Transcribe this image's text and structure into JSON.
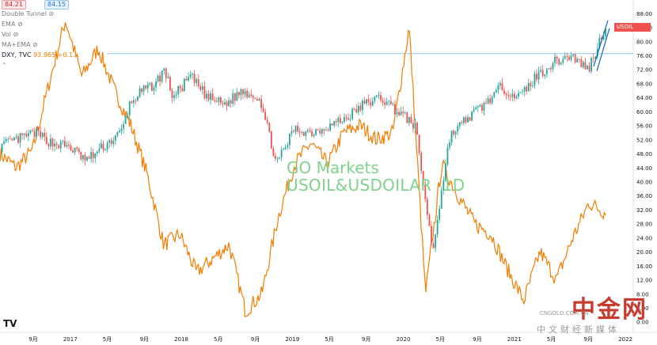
{
  "legend": {
    "price_red": "84.21",
    "price_blue": "84.15",
    "indicators": [
      "Double Tunnel",
      "EMA",
      "Vol",
      "MA+EMA"
    ],
    "dxy_label": "DXY, TVC",
    "dxy_value": "93.965",
    "dxy_change": "+0.1…"
  },
  "watermark": {
    "line1": "GO Markets",
    "line2": "USOIL&USDOILAR  1D"
  },
  "brand": {
    "name": "中金网",
    "domain": "CNGOLD.COM.CN",
    "tagline": "中文财经新媒体"
  },
  "colors": {
    "usoil_up": "#26a69a",
    "usoil_down": "#ef5350",
    "dxy": "#f57c00",
    "trendline": "#1565c0",
    "hline": "#90caf9"
  },
  "chart_data": {
    "type": "line",
    "x_ticks": [
      "9月",
      "2017",
      "5月",
      "9月",
      "2018",
      "5月",
      "9月",
      "2019",
      "5月",
      "9月",
      "2020",
      "5月",
      "9月",
      "2021",
      "5月",
      "9月",
      "2022"
    ],
    "y_ticks": [
      88,
      84,
      80,
      76,
      72,
      68,
      64,
      60,
      56,
      52,
      48,
      44,
      40,
      36,
      32,
      28,
      24,
      20,
      16,
      12,
      8,
      4,
      0
    ],
    "ylim": [
      -3,
      90
    ],
    "series": [
      {
        "name": "USOIL",
        "style": "candles",
        "points": [
          [
            0,
            50
          ],
          [
            1,
            52
          ],
          [
            1.5,
            53
          ],
          [
            2,
            54
          ],
          [
            3,
            51
          ],
          [
            4,
            50
          ],
          [
            5,
            46
          ],
          [
            6,
            50
          ],
          [
            7,
            54
          ],
          [
            7.5,
            62
          ],
          [
            8,
            65
          ],
          [
            9,
            68
          ],
          [
            9.5,
            72
          ],
          [
            10,
            64
          ],
          [
            11,
            70
          ],
          [
            12,
            64
          ],
          [
            13,
            62
          ],
          [
            14,
            66
          ],
          [
            15,
            64
          ],
          [
            16,
            45
          ],
          [
            17,
            55
          ],
          [
            18,
            54
          ],
          [
            19,
            56
          ],
          [
            20,
            58
          ],
          [
            21,
            62
          ],
          [
            22,
            64
          ],
          [
            23,
            60
          ],
          [
            24,
            56
          ],
          [
            25,
            20
          ],
          [
            26,
            53
          ],
          [
            27,
            58
          ],
          [
            28,
            62
          ],
          [
            29,
            67
          ],
          [
            30,
            64
          ],
          [
            31,
            70
          ],
          [
            32,
            74
          ],
          [
            33,
            76
          ],
          [
            34,
            72
          ],
          [
            35,
            84.2
          ]
        ],
        "last_value": 84.21
      },
      {
        "name": "DXY",
        "style": "line",
        "points": [
          [
            0,
            48
          ],
          [
            1,
            44
          ],
          [
            2,
            49
          ],
          [
            3,
            68
          ],
          [
            4,
            86
          ],
          [
            5,
            70
          ],
          [
            6,
            78
          ],
          [
            7,
            66
          ],
          [
            8,
            56
          ],
          [
            9,
            42
          ],
          [
            10,
            22
          ],
          [
            11,
            25
          ],
          [
            12,
            14
          ],
          [
            13,
            18
          ],
          [
            14,
            22
          ],
          [
            15,
            3
          ],
          [
            16,
            8
          ],
          [
            17,
            30
          ],
          [
            18,
            45
          ],
          [
            19,
            51
          ],
          [
            20,
            45
          ],
          [
            21,
            54
          ],
          [
            22,
            56
          ],
          [
            23,
            52
          ],
          [
            24,
            54
          ],
          [
            25,
            84
          ],
          [
            26,
            8
          ],
          [
            27,
            45
          ],
          [
            28,
            36
          ],
          [
            29,
            28
          ],
          [
            30,
            25
          ],
          [
            31,
            15
          ],
          [
            32,
            6
          ],
          [
            33,
            20
          ],
          [
            34,
            12
          ],
          [
            35,
            24
          ],
          [
            36,
            34
          ],
          [
            37,
            31
          ]
        ],
        "last_value": 93.965
      }
    ],
    "trendline_end": 84.21,
    "hline_value": 76.5,
    "last_value_label": "84.21",
    "last_value_series": "USOIL"
  }
}
